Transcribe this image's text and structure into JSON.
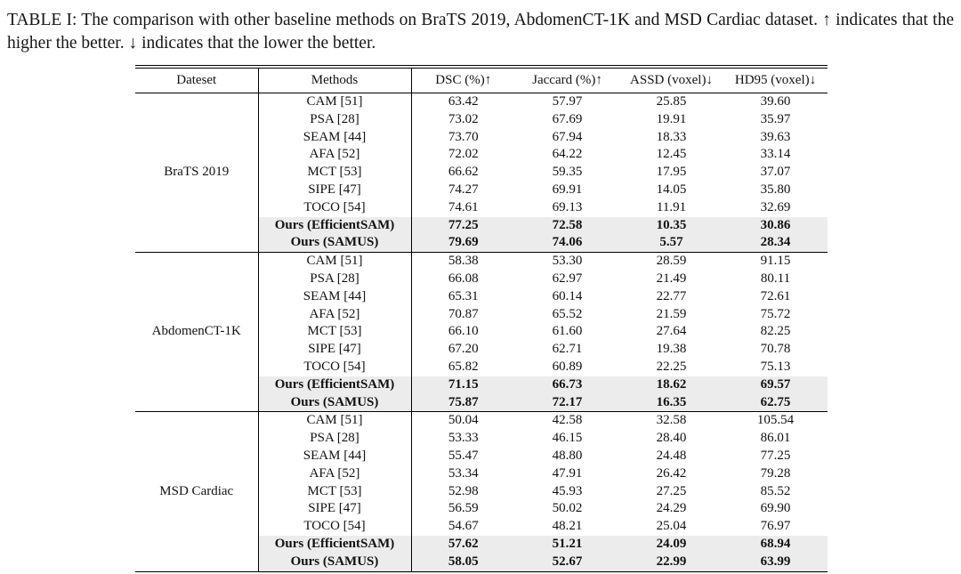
{
  "caption": "TABLE I: The comparison with other baseline methods on BraTS 2019, AbdomenCT-1K and MSD Cardiac dataset. ↑ indicates that the higher the better. ↓ indicates that the lower the better.",
  "colors": {
    "row_highlight": "#ececec",
    "rule": "#000000",
    "text": "#111111",
    "background": "#ffffff"
  },
  "table": {
    "headers": [
      "Dateset",
      "Methods",
      "DSC (%)↑",
      "Jaccard (%)↑",
      "ASSD (voxel)↓",
      "HD95 (voxel)↓"
    ],
    "sections": [
      {
        "dataset": "BraTS 2019",
        "rows": [
          {
            "method": "CAM [51]",
            "values": [
              "63.42",
              "57.97",
              "25.85",
              "39.60"
            ],
            "bold": false,
            "shaded": false
          },
          {
            "method": "PSA [28]",
            "values": [
              "73.02",
              "67.69",
              "19.91",
              "35.97"
            ],
            "bold": false,
            "shaded": false
          },
          {
            "method": "SEAM [44]",
            "values": [
              "73.70",
              "67.94",
              "18.33",
              "39.63"
            ],
            "bold": false,
            "shaded": false
          },
          {
            "method": "AFA [52]",
            "values": [
              "72.02",
              "64.22",
              "12.45",
              "33.14"
            ],
            "bold": false,
            "shaded": false
          },
          {
            "method": "MCT [53]",
            "values": [
              "66.62",
              "59.35",
              "17.95",
              "37.07"
            ],
            "bold": false,
            "shaded": false
          },
          {
            "method": "SIPE [47]",
            "values": [
              "74.27",
              "69.91",
              "14.05",
              "35.80"
            ],
            "bold": false,
            "shaded": false
          },
          {
            "method": "TOCO [54]",
            "values": [
              "74.61",
              "69.13",
              "11.91",
              "32.69"
            ],
            "bold": false,
            "shaded": false
          },
          {
            "method": "Ours (EfficientSAM)",
            "values": [
              "77.25",
              "72.58",
              "10.35",
              "30.86"
            ],
            "bold": true,
            "shaded": true
          },
          {
            "method": "Ours (SAMUS)",
            "values": [
              "79.69",
              "74.06",
              "5.57",
              "28.34"
            ],
            "bold": true,
            "shaded": true
          }
        ]
      },
      {
        "dataset": "AbdomenCT-1K",
        "rows": [
          {
            "method": "CAM [51]",
            "values": [
              "58.38",
              "53.30",
              "28.59",
              "91.15"
            ],
            "bold": false,
            "shaded": false
          },
          {
            "method": "PSA [28]",
            "values": [
              "66.08",
              "62.97",
              "21.49",
              "80.11"
            ],
            "bold": false,
            "shaded": false
          },
          {
            "method": "SEAM [44]",
            "values": [
              "65.31",
              "60.14",
              "22.77",
              "72.61"
            ],
            "bold": false,
            "shaded": false
          },
          {
            "method": "AFA [52]",
            "values": [
              "70.87",
              "65.52",
              "21.59",
              "75.72"
            ],
            "bold": false,
            "shaded": false
          },
          {
            "method": "MCT [53]",
            "values": [
              "66.10",
              "61.60",
              "27.64",
              "82.25"
            ],
            "bold": false,
            "shaded": false
          },
          {
            "method": "SIPE [47]",
            "values": [
              "67.20",
              "62.71",
              "19.38",
              "70.78"
            ],
            "bold": false,
            "shaded": false
          },
          {
            "method": "TOCO [54]",
            "values": [
              "65.82",
              "60.89",
              "22.25",
              "75.13"
            ],
            "bold": false,
            "shaded": false
          },
          {
            "method": "Ours (EfficientSAM)",
            "values": [
              "71.15",
              "66.73",
              "18.62",
              "69.57"
            ],
            "bold": true,
            "shaded": true
          },
          {
            "method": "Ours (SAMUS)",
            "values": [
              "75.87",
              "72.17",
              "16.35",
              "62.75"
            ],
            "bold": true,
            "shaded": true
          }
        ]
      },
      {
        "dataset": "MSD Cardiac",
        "rows": [
          {
            "method": "CAM [51]",
            "values": [
              "50.04",
              "42.58",
              "32.58",
              "105.54"
            ],
            "bold": false,
            "shaded": false
          },
          {
            "method": "PSA [28]",
            "values": [
              "53.33",
              "46.15",
              "28.40",
              "86.01"
            ],
            "bold": false,
            "shaded": false
          },
          {
            "method": "SEAM [44]",
            "values": [
              "55.47",
              "48.80",
              "24.48",
              "77.25"
            ],
            "bold": false,
            "shaded": false
          },
          {
            "method": "AFA [52]",
            "values": [
              "53.34",
              "47.91",
              "26.42",
              "79.28"
            ],
            "bold": false,
            "shaded": false
          },
          {
            "method": "MCT [53]",
            "values": [
              "52.98",
              "45.93",
              "27.25",
              "85.52"
            ],
            "bold": false,
            "shaded": false
          },
          {
            "method": "SIPE [47]",
            "values": [
              "56.59",
              "50.02",
              "24.29",
              "69.90"
            ],
            "bold": false,
            "shaded": false
          },
          {
            "method": "TOCO [54]",
            "values": [
              "54.67",
              "48.21",
              "25.04",
              "76.97"
            ],
            "bold": false,
            "shaded": false
          },
          {
            "method": "Ours (EfficientSAM)",
            "values": [
              "57.62",
              "51.21",
              "24.09",
              "68.94"
            ],
            "bold": true,
            "shaded": true
          },
          {
            "method": "Ours (SAMUS)",
            "values": [
              "58.05",
              "52.67",
              "22.99",
              "63.99"
            ],
            "bold": true,
            "shaded": true
          }
        ]
      }
    ]
  }
}
